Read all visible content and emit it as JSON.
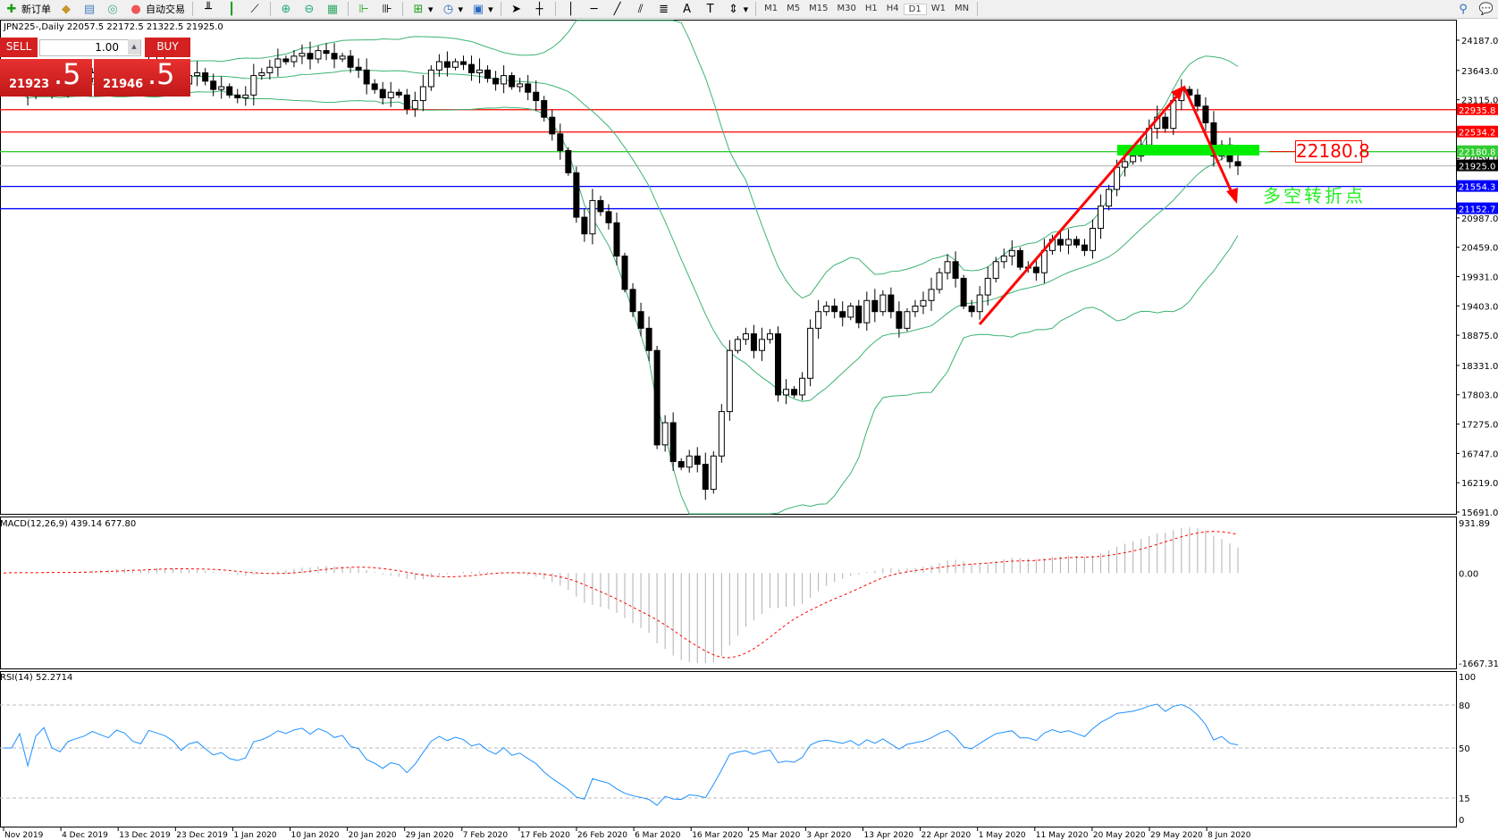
{
  "toolbar": {
    "new_order": "新订单",
    "auto_trading": "自动交易",
    "timeframes": [
      "M1",
      "M5",
      "M15",
      "M30",
      "H1",
      "H4",
      "D1",
      "W1",
      "MN"
    ],
    "active_timeframe": "D1"
  },
  "header": {
    "info": "JPN225-,Daily  22057.5 22172.5 21322.5 21925.0"
  },
  "trade_panel": {
    "sell_label": "SELL",
    "buy_label": "BUY",
    "lot": "1.00",
    "sell_price_main": "21923",
    "sell_price_big": ".5",
    "buy_price_main": "21946",
    "buy_price_big": ".5"
  },
  "annotation": {
    "level_label": "22180.8",
    "text": "多空转折点",
    "colors": {
      "arrow": "#ff0000",
      "zone": "#00ee00",
      "text": "#22ee22"
    }
  },
  "price_axis": {
    "ticks": [
      "24187.0",
      "23643.0",
      "23115.0",
      "22059.0",
      "20987.0",
      "20459.0",
      "19931.0",
      "19403.0",
      "18875.0",
      "18331.0",
      "17803.0",
      "17275.0",
      "16747.0",
      "16219.0",
      "15691.0"
    ],
    "range": [
      15691,
      24187
    ]
  },
  "levels": [
    {
      "value": "22935.8",
      "color": "#ff0000"
    },
    {
      "value": "22534.2",
      "color": "#ff0000"
    },
    {
      "value": "22180.8",
      "color": "#33cc33"
    },
    {
      "value": "21925.0",
      "color": "#000000",
      "line": "#c0c0c0"
    },
    {
      "value": "21554.3",
      "color": "#0000ff"
    },
    {
      "value": "21152.7",
      "color": "#0000ff"
    }
  ],
  "macd": {
    "label": "MACD(12,26,9) 439.14 677.80",
    "axis": [
      "931.89",
      "0.00",
      "-1667.31"
    ],
    "range": [
      -1667.31,
      931.89
    ]
  },
  "rsi": {
    "label": "RSI(14) 52.2714",
    "axis": [
      "100",
      "80",
      "50",
      "15",
      "0"
    ],
    "levels": [
      80,
      50,
      15
    ]
  },
  "dates": [
    "Nov 2019",
    "4 Dec 2019",
    "13 Dec 2019",
    "23 Dec 2019",
    "1 Jan 2020",
    "10 Jan 2020",
    "20 Jan 2020",
    "29 Jan 2020",
    "7 Feb 2020",
    "17 Feb 2020",
    "26 Feb 2020",
    "6 Mar 2020",
    "16 Mar 2020",
    "25 Mar 2020",
    "3 Apr 2020",
    "13 Apr 2020",
    "22 Apr 2020",
    "1 May 2020",
    "11 May 2020",
    "20 May 2020",
    "29 May 2020",
    "8 Jun 2020"
  ],
  "closes": [
    23300,
    23450,
    23350,
    23200,
    23400,
    23500,
    23300,
    23250,
    23400,
    23450,
    23500,
    23600,
    23550,
    23500,
    23700,
    23650,
    23500,
    23450,
    23800,
    23750,
    23700,
    23600,
    23400,
    23550,
    23600,
    23450,
    23300,
    23350,
    23200,
    23150,
    23200,
    23550,
    23600,
    23700,
    23850,
    23800,
    23900,
    23950,
    23850,
    24000,
    23950,
    23850,
    23900,
    23700,
    23650,
    23400,
    23300,
    23150,
    23250,
    23200,
    22950,
    23100,
    23350,
    23650,
    23800,
    23700,
    23800,
    23750,
    23600,
    23650,
    23500,
    23400,
    23550,
    23350,
    23400,
    23250,
    23100,
    22800,
    22500,
    22200,
    21800,
    21000,
    20700,
    21300,
    21100,
    20900,
    20300,
    19700,
    19300,
    19000,
    18600,
    16900,
    17300,
    16600,
    16500,
    16700,
    16550,
    16100,
    16700,
    17500,
    18600,
    18800,
    18900,
    18600,
    18800,
    18900,
    17800,
    17900,
    17800,
    18100,
    19000,
    19300,
    19400,
    19300,
    19200,
    19400,
    19100,
    19500,
    19300,
    19600,
    19300,
    19000,
    19300,
    19400,
    19500,
    19700,
    20000,
    20200,
    19900,
    19400,
    19300,
    19600,
    19900,
    20200,
    20300,
    20400,
    20100,
    20100,
    20000,
    20400,
    20600,
    20500,
    20600,
    20500,
    20400,
    20800,
    21200,
    21500,
    21900,
    22000,
    22100,
    22300,
    22600,
    22800,
    22600,
    23100,
    23300,
    23200,
    23000,
    22700,
    22100,
    22300,
    22000,
    21925
  ]
}
